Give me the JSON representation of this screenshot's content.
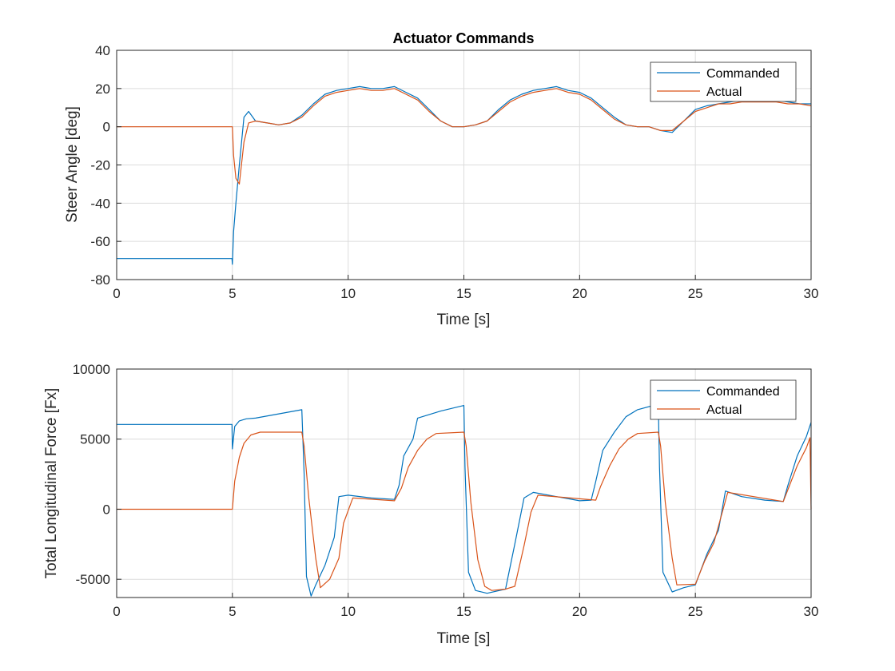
{
  "chart_data": [
    {
      "type": "line",
      "title": "Actuator Commands",
      "xlabel": "Time [s]",
      "ylabel": "Steer Angle [deg]",
      "xlim": [
        0,
        30
      ],
      "ylim": [
        -80,
        40
      ],
      "xticks": [
        0,
        5,
        10,
        15,
        20,
        25,
        30
      ],
      "yticks": [
        -80,
        -60,
        -40,
        -20,
        0,
        20,
        40
      ],
      "grid": true,
      "legend_position": "top-right",
      "series": [
        {
          "name": "Commanded",
          "color": "#0072BD",
          "x": [
            0,
            4.98,
            5.0,
            5.05,
            5.15,
            5.3,
            5.5,
            5.7,
            6.0,
            6.5,
            7.0,
            7.5,
            8.0,
            8.5,
            9.0,
            9.5,
            10.0,
            10.5,
            11.0,
            11.5,
            12.0,
            12.5,
            13.0,
            13.5,
            14.0,
            14.5,
            15.0,
            15.5,
            16.0,
            16.5,
            17.0,
            17.5,
            18.0,
            18.5,
            19.0,
            19.5,
            20.0,
            20.5,
            21.0,
            21.5,
            22.0,
            22.5,
            23.0,
            23.5,
            24.0,
            24.5,
            25.0,
            25.5,
            26.0,
            26.5,
            27.0,
            27.5,
            28.0,
            28.5,
            29.0,
            29.5,
            30.0
          ],
          "y": [
            -69,
            -69,
            -72,
            -55,
            -40,
            -20,
            5,
            8,
            3,
            2,
            1,
            2,
            6,
            12,
            17,
            19,
            20,
            21,
            20,
            20,
            21,
            18,
            15,
            9,
            3,
            0,
            0,
            1,
            3,
            9,
            14,
            17,
            19,
            20,
            21,
            19,
            18,
            15,
            10,
            5,
            1,
            0,
            0,
            -2,
            -3,
            3,
            9,
            11,
            12,
            13,
            14,
            14,
            14,
            14,
            13,
            12,
            12
          ]
        },
        {
          "name": "Actual",
          "color": "#D95319",
          "x": [
            0,
            5.0,
            5.05,
            5.15,
            5.3,
            5.5,
            5.7,
            6.0,
            6.5,
            7.0,
            7.5,
            8.0,
            8.5,
            9.0,
            9.5,
            10.0,
            10.5,
            11.0,
            11.5,
            12.0,
            12.5,
            13.0,
            13.5,
            14.0,
            14.5,
            15.0,
            15.5,
            16.0,
            16.5,
            17.0,
            17.5,
            18.0,
            18.5,
            19.0,
            19.5,
            20.0,
            20.5,
            21.0,
            21.5,
            22.0,
            22.5,
            23.0,
            23.5,
            24.0,
            24.5,
            25.0,
            25.5,
            26.0,
            26.5,
            27.0,
            27.5,
            28.0,
            28.5,
            29.0,
            29.5,
            30.0
          ],
          "y": [
            0,
            0,
            -15,
            -27,
            -30,
            -8,
            2,
            3,
            2,
            1,
            2,
            5,
            11,
            16,
            18,
            19,
            20,
            19,
            19,
            20,
            17,
            14,
            8,
            3,
            0,
            0,
            1,
            3,
            8,
            13,
            16,
            18,
            19,
            20,
            18,
            17,
            14,
            9,
            4,
            1,
            0,
            0,
            -2,
            -2,
            3,
            8,
            10,
            12,
            12,
            13,
            13,
            13,
            13,
            12,
            12,
            11
          ]
        }
      ]
    },
    {
      "type": "line",
      "title": "",
      "xlabel": "Time [s]",
      "ylabel": "Total Longitudinal Force [Fx]",
      "xlim": [
        0,
        30
      ],
      "ylim": [
        -6300,
        10000
      ],
      "xticks": [
        0,
        5,
        10,
        15,
        20,
        25,
        30
      ],
      "yticks": [
        -5000,
        0,
        5000,
        10000
      ],
      "grid": true,
      "legend_position": "top-right",
      "series": [
        {
          "name": "Commanded",
          "color": "#0072BD",
          "x": [
            0,
            4.98,
            5.0,
            5.1,
            5.3,
            5.6,
            6.0,
            7.0,
            8.0,
            8.1,
            8.2,
            8.4,
            8.6,
            9.0,
            9.4,
            9.6,
            10.0,
            11.0,
            12.0,
            12.2,
            12.4,
            12.8,
            13.0,
            14.0,
            15.0,
            15.05,
            15.2,
            15.5,
            16.0,
            16.8,
            17.2,
            17.6,
            18.0,
            19.0,
            20.0,
            20.5,
            20.7,
            21.0,
            21.5,
            22.0,
            22.5,
            23.4,
            23.45,
            23.6,
            24.0,
            24.5,
            25.0,
            25.5,
            26.0,
            26.3,
            27.0,
            28.0,
            28.8,
            29.0,
            29.4,
            29.8,
            30.0
          ],
          "y": [
            6050,
            6050,
            4300,
            5900,
            6300,
            6450,
            6500,
            6800,
            7100,
            2500,
            -4800,
            -6200,
            -5400,
            -4000,
            -2000,
            900,
            1000,
            800,
            700,
            1700,
            3800,
            5000,
            6500,
            7000,
            7400,
            3000,
            -4500,
            -5800,
            -6000,
            -5700,
            -2500,
            800,
            1200,
            900,
            600,
            650,
            2000,
            4200,
            5500,
            6600,
            7100,
            7500,
            3000,
            -4500,
            -5900,
            -5600,
            -5400,
            -3200,
            -1500,
            1300,
            900,
            650,
            550,
            1700,
            3800,
            5200,
            6200
          ]
        },
        {
          "name": "Actual",
          "color": "#D95319",
          "x": [
            0,
            5.0,
            5.1,
            5.3,
            5.5,
            5.8,
            6.2,
            8.0,
            8.1,
            8.3,
            8.6,
            8.8,
            9.2,
            9.6,
            9.8,
            10.2,
            12.0,
            12.3,
            12.6,
            13.0,
            13.4,
            13.8,
            15.0,
            15.1,
            15.3,
            15.6,
            15.9,
            16.2,
            16.8,
            17.2,
            17.6,
            17.9,
            18.2,
            20.7,
            20.9,
            21.3,
            21.7,
            22.1,
            22.5,
            23.4,
            23.5,
            23.7,
            24.0,
            24.2,
            25.0,
            25.4,
            25.8,
            26.2,
            26.4,
            28.8,
            29.0,
            29.4,
            29.8,
            29.95,
            30.0
          ],
          "y": [
            0,
            0,
            2000,
            3700,
            4700,
            5300,
            5500,
            5500,
            4500,
            800,
            -3500,
            -5600,
            -5000,
            -3500,
            -1000,
            800,
            600,
            1500,
            3000,
            4200,
            5000,
            5400,
            5500,
            4500,
            500,
            -3600,
            -5500,
            -5800,
            -5700,
            -5500,
            -2600,
            -200,
            1000,
            650,
            1600,
            3100,
            4300,
            5000,
            5400,
            5500,
            4500,
            500,
            -3500,
            -5400,
            -5350,
            -3700,
            -2400,
            0,
            1200,
            550,
            1400,
            3100,
            4400,
            5100,
            0
          ]
        }
      ]
    }
  ]
}
